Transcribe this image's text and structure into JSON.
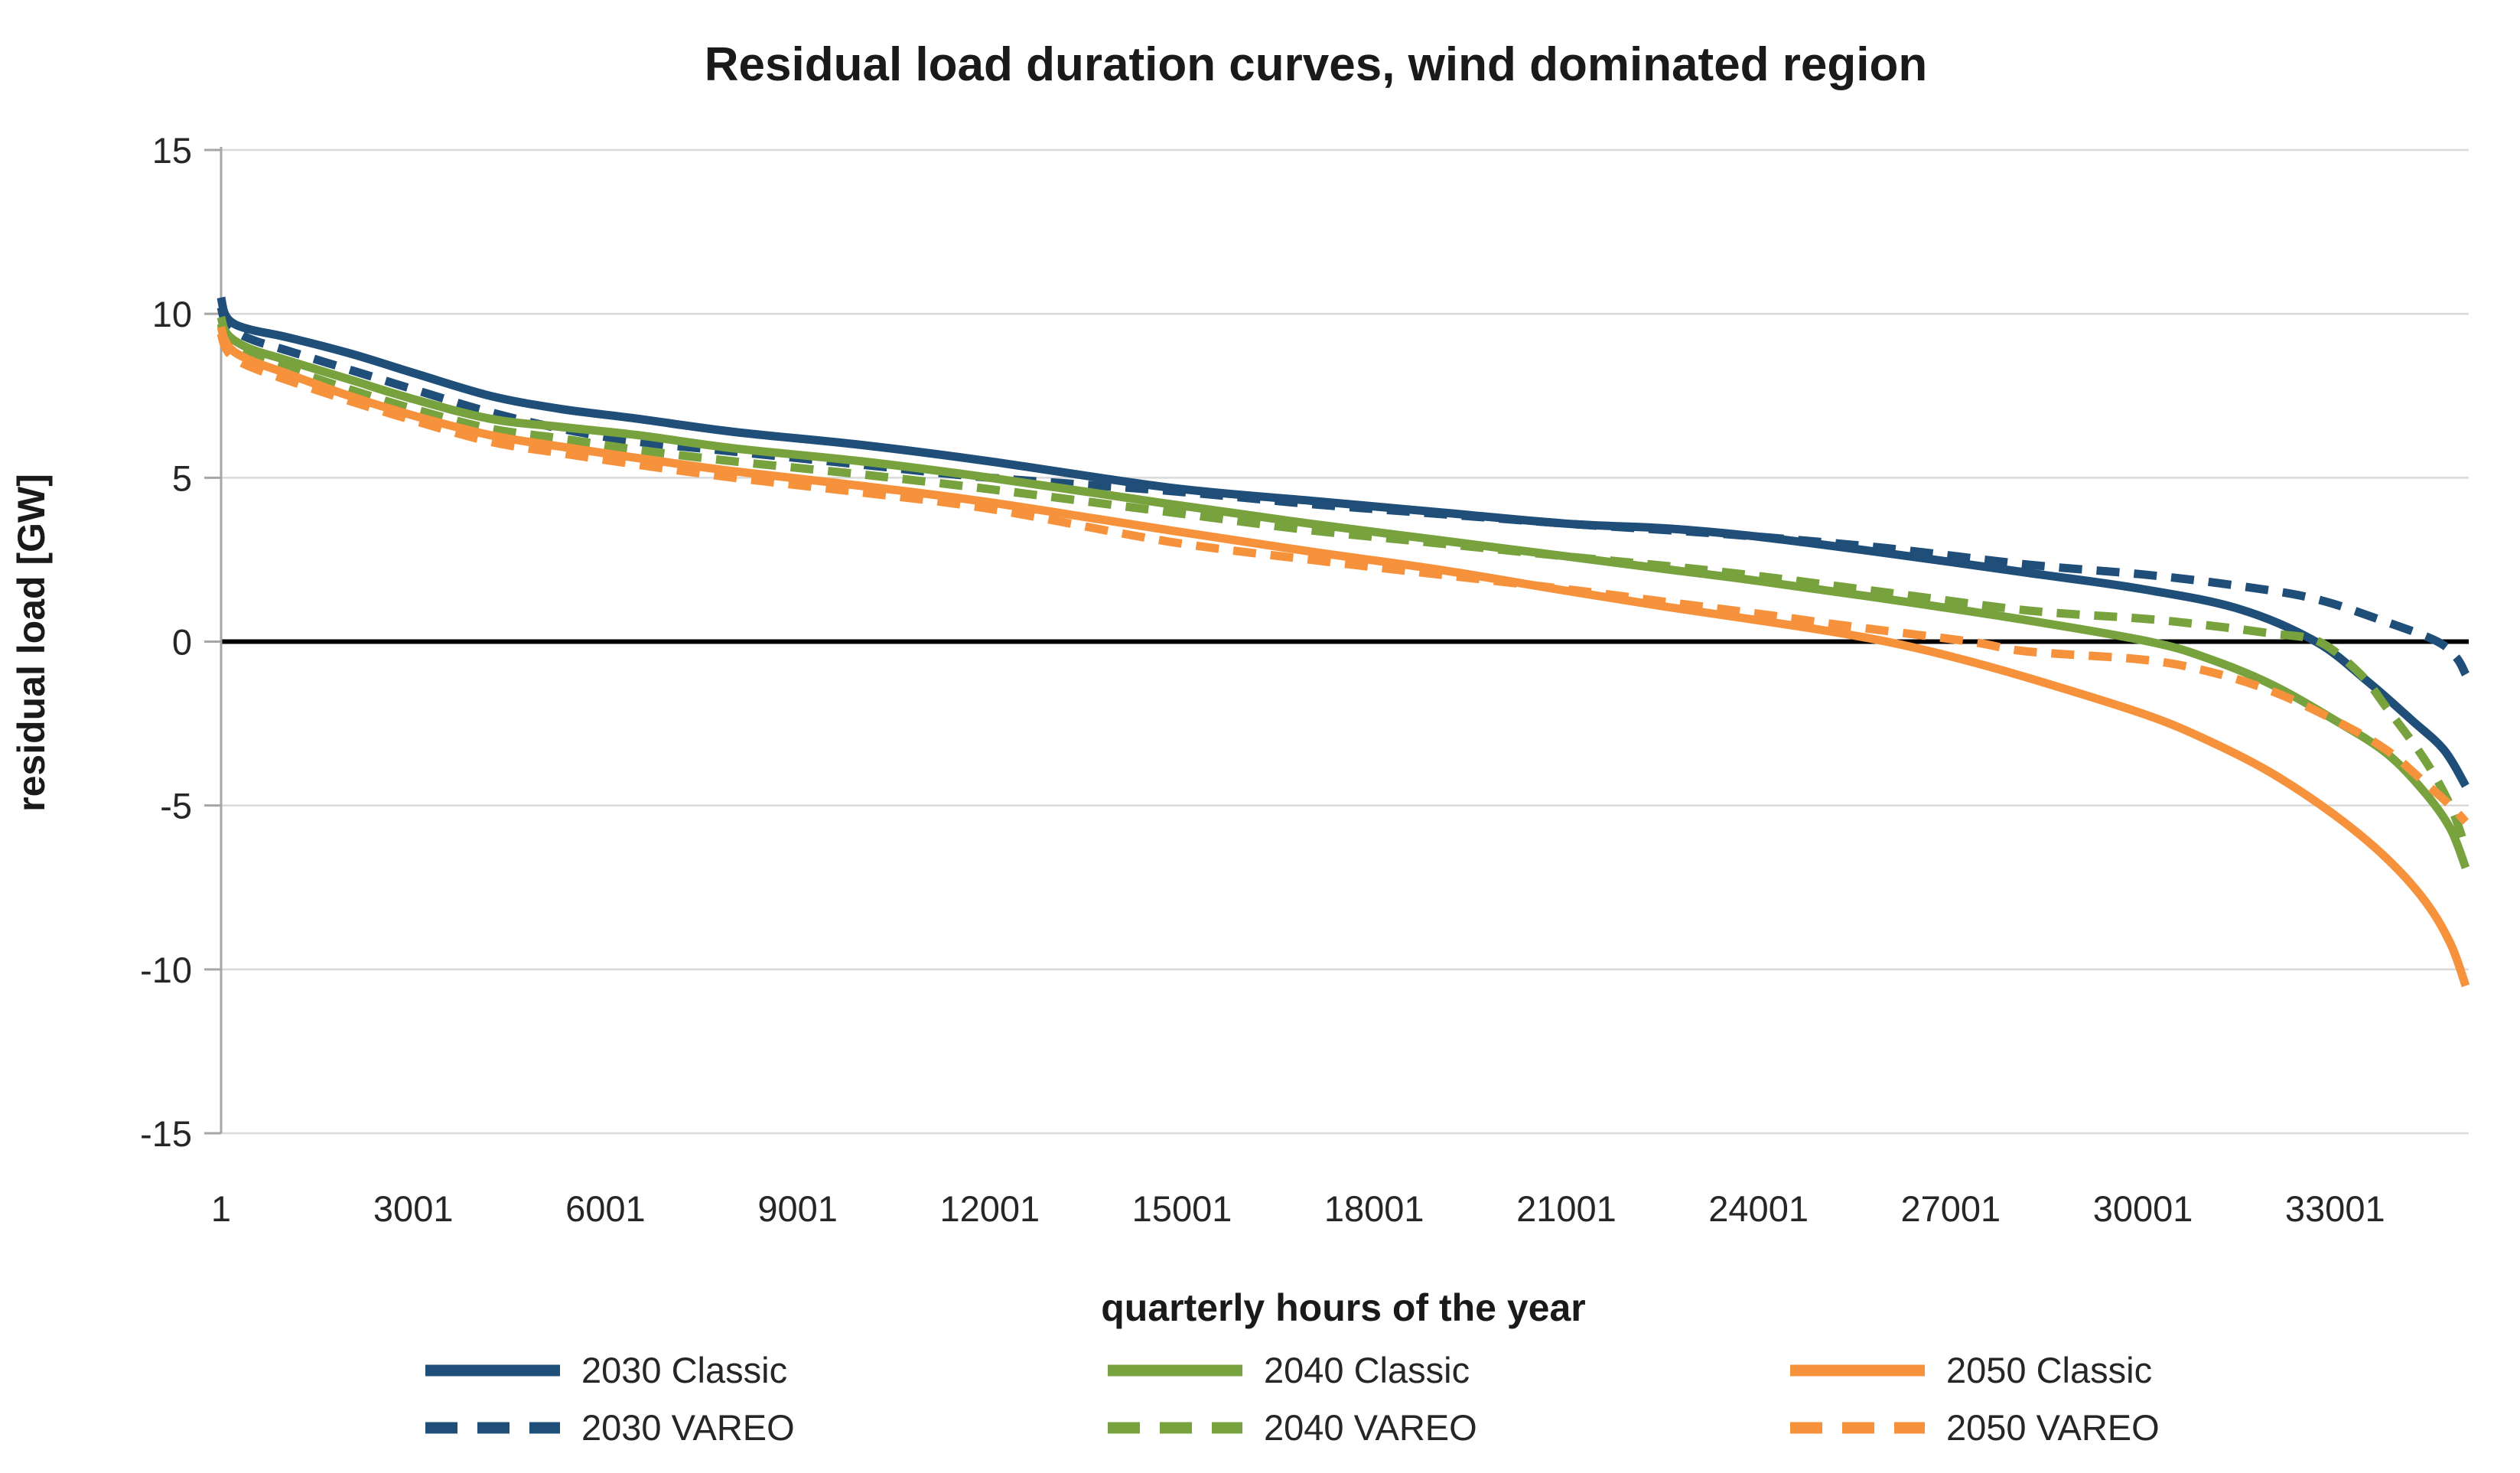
{
  "title": "Residual load duration curves, wind dominated region",
  "colors": {
    "blue": "#1F4E79",
    "green": "#77A23D",
    "orange": "#F7923C",
    "gridline": "#D9D9D9",
    "axis_line": "#A6A6A6",
    "zero_line": "#000000",
    "text": "#262626"
  },
  "chart_data": {
    "type": "line",
    "title": "Residual load duration curves, wind dominated region",
    "xlabel": "quarterly hours of the year",
    "ylabel": "residual load [GW]",
    "xlim": [
      1,
      35040
    ],
    "ylim": [
      -15,
      15
    ],
    "x_ticks": [
      1,
      3001,
      6001,
      9001,
      12001,
      15001,
      18001,
      21001,
      24001,
      27001,
      30001,
      33001
    ],
    "y_ticks": [
      15,
      10,
      5,
      0,
      -5,
      -10,
      -15
    ],
    "grid": "horizontal-only",
    "zero_line": true,
    "legend_position": "bottom",
    "series": [
      {
        "name": "2030 Classic",
        "color": "#1F4E79",
        "dash": false,
        "points": [
          [
            1,
            10.5
          ],
          [
            60,
            10.0
          ],
          [
            200,
            9.7
          ],
          [
            500,
            9.5
          ],
          [
            1000,
            9.3
          ],
          [
            2000,
            8.8
          ],
          [
            3000,
            8.2
          ],
          [
            4200,
            7.5
          ],
          [
            5300,
            7.1
          ],
          [
            6500,
            6.8
          ],
          [
            8000,
            6.4
          ],
          [
            10000,
            6.0
          ],
          [
            12000,
            5.5
          ],
          [
            14800,
            4.7
          ],
          [
            17000,
            4.3
          ],
          [
            19000,
            3.95
          ],
          [
            21000,
            3.6
          ],
          [
            22600,
            3.45
          ],
          [
            24000,
            3.2
          ],
          [
            26000,
            2.7
          ],
          [
            28200,
            2.1
          ],
          [
            30000,
            1.6
          ],
          [
            31500,
            1.0
          ],
          [
            32700,
            0.0
          ],
          [
            33500,
            -1.2
          ],
          [
            34200,
            -2.4
          ],
          [
            34700,
            -3.3
          ],
          [
            35040,
            -4.4
          ]
        ]
      },
      {
        "name": "2030 VAREO",
        "color": "#1F4E79",
        "dash": true,
        "points": [
          [
            1,
            10.2
          ],
          [
            60,
            9.8
          ],
          [
            200,
            9.5
          ],
          [
            500,
            9.2
          ],
          [
            1000,
            8.9
          ],
          [
            2000,
            8.3
          ],
          [
            3000,
            7.7
          ],
          [
            4200,
            7.0
          ],
          [
            5300,
            6.5
          ],
          [
            6500,
            6.1
          ],
          [
            8000,
            5.8
          ],
          [
            10000,
            5.4
          ],
          [
            12000,
            5.0
          ],
          [
            14800,
            4.6
          ],
          [
            17000,
            4.2
          ],
          [
            19000,
            3.9
          ],
          [
            21000,
            3.6
          ],
          [
            22600,
            3.4
          ],
          [
            24000,
            3.2
          ],
          [
            26000,
            2.85
          ],
          [
            28200,
            2.35
          ],
          [
            30000,
            2.05
          ],
          [
            31500,
            1.7
          ],
          [
            32700,
            1.3
          ],
          [
            33800,
            0.6
          ],
          [
            34600,
            0.0
          ],
          [
            34900,
            -0.5
          ],
          [
            35040,
            -1.0
          ]
        ]
      },
      {
        "name": "2040 Classic",
        "color": "#77A23D",
        "dash": false,
        "points": [
          [
            1,
            9.9
          ],
          [
            60,
            9.5
          ],
          [
            200,
            9.2
          ],
          [
            500,
            8.9
          ],
          [
            1000,
            8.6
          ],
          [
            2000,
            8.0
          ],
          [
            3000,
            7.4
          ],
          [
            4200,
            6.8
          ],
          [
            5300,
            6.55
          ],
          [
            6500,
            6.3
          ],
          [
            8000,
            5.9
          ],
          [
            10000,
            5.5
          ],
          [
            12000,
            5.0
          ],
          [
            14800,
            4.2
          ],
          [
            17000,
            3.6
          ],
          [
            19000,
            3.1
          ],
          [
            21000,
            2.6
          ],
          [
            22600,
            2.2
          ],
          [
            24000,
            1.85
          ],
          [
            26000,
            1.3
          ],
          [
            28200,
            0.65
          ],
          [
            30100,
            0.0
          ],
          [
            31000,
            -0.5
          ],
          [
            32000,
            -1.3
          ],
          [
            33000,
            -2.4
          ],
          [
            33800,
            -3.4
          ],
          [
            34400,
            -4.6
          ],
          [
            34800,
            -5.7
          ],
          [
            35040,
            -6.9
          ]
        ]
      },
      {
        "name": "2040 VAREO",
        "color": "#77A23D",
        "dash": true,
        "points": [
          [
            1,
            9.7
          ],
          [
            60,
            9.3
          ],
          [
            200,
            9.0
          ],
          [
            500,
            8.7
          ],
          [
            1000,
            8.35
          ],
          [
            2000,
            7.7
          ],
          [
            3000,
            7.1
          ],
          [
            4200,
            6.5
          ],
          [
            5300,
            6.2
          ],
          [
            6500,
            5.85
          ],
          [
            8000,
            5.5
          ],
          [
            10000,
            5.1
          ],
          [
            12000,
            4.65
          ],
          [
            14800,
            3.95
          ],
          [
            17000,
            3.4
          ],
          [
            19000,
            3.0
          ],
          [
            21000,
            2.6
          ],
          [
            22600,
            2.3
          ],
          [
            24000,
            2.0
          ],
          [
            26000,
            1.5
          ],
          [
            28200,
            0.95
          ],
          [
            30000,
            0.7
          ],
          [
            31000,
            0.5
          ],
          [
            32000,
            0.25
          ],
          [
            32750,
            0.0
          ],
          [
            33400,
            -1.0
          ],
          [
            33800,
            -2.0
          ],
          [
            34400,
            -3.6
          ],
          [
            34800,
            -5.0
          ],
          [
            35040,
            -6.3
          ]
        ]
      },
      {
        "name": "2050 Classic",
        "color": "#F7923C",
        "dash": false,
        "points": [
          [
            1,
            9.6
          ],
          [
            60,
            9.2
          ],
          [
            200,
            8.85
          ],
          [
            500,
            8.55
          ],
          [
            1000,
            8.2
          ],
          [
            2000,
            7.5
          ],
          [
            3000,
            6.9
          ],
          [
            4200,
            6.3
          ],
          [
            5300,
            5.95
          ],
          [
            6500,
            5.6
          ],
          [
            8000,
            5.2
          ],
          [
            10000,
            4.75
          ],
          [
            12000,
            4.25
          ],
          [
            14800,
            3.4
          ],
          [
            17000,
            2.75
          ],
          [
            19000,
            2.2
          ],
          [
            21000,
            1.55
          ],
          [
            22600,
            1.05
          ],
          [
            24000,
            0.65
          ],
          [
            25000,
            0.35
          ],
          [
            26000,
            0.0
          ],
          [
            27000,
            -0.45
          ],
          [
            28200,
            -1.1
          ],
          [
            30000,
            -2.2
          ],
          [
            31000,
            -3.0
          ],
          [
            32000,
            -4.0
          ],
          [
            33000,
            -5.3
          ],
          [
            33800,
            -6.6
          ],
          [
            34400,
            -7.9
          ],
          [
            34800,
            -9.2
          ],
          [
            35040,
            -10.5
          ]
        ]
      },
      {
        "name": "2050 VAREO",
        "color": "#F7923C",
        "dash": true,
        "points": [
          [
            1,
            9.4
          ],
          [
            60,
            9.0
          ],
          [
            200,
            8.65
          ],
          [
            500,
            8.35
          ],
          [
            1000,
            8.0
          ],
          [
            2000,
            7.35
          ],
          [
            3000,
            6.75
          ],
          [
            4200,
            6.1
          ],
          [
            5300,
            5.75
          ],
          [
            6500,
            5.4
          ],
          [
            8000,
            5.0
          ],
          [
            10000,
            4.55
          ],
          [
            12000,
            4.05
          ],
          [
            14800,
            3.05
          ],
          [
            17000,
            2.5
          ],
          [
            19000,
            2.05
          ],
          [
            21000,
            1.6
          ],
          [
            22600,
            1.2
          ],
          [
            24000,
            0.85
          ],
          [
            25500,
            0.45
          ],
          [
            27300,
            0.0
          ],
          [
            28200,
            -0.3
          ],
          [
            30000,
            -0.55
          ],
          [
            31000,
            -0.9
          ],
          [
            32000,
            -1.5
          ],
          [
            33000,
            -2.4
          ],
          [
            33800,
            -3.3
          ],
          [
            34400,
            -4.3
          ],
          [
            34800,
            -5.0
          ],
          [
            35040,
            -5.5
          ]
        ]
      }
    ]
  },
  "legend": {
    "rows": 2,
    "columns": 3,
    "items": [
      "2030 Classic",
      "2030 VAREO",
      "2040 Classic",
      "2040 VAREO",
      "2050 Classic",
      "2050 VAREO"
    ]
  }
}
